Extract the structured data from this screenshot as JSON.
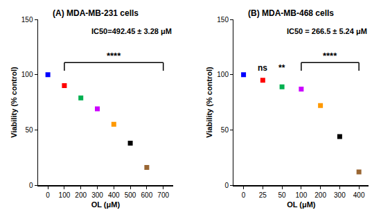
{
  "chart_data": [
    {
      "type": "scatter",
      "title": "(A) MDA-MB-231 cells",
      "x_label": "OL (μM)",
      "y_label": "Viability (% control)",
      "categories": [
        "0",
        "100",
        "200",
        "300",
        "400",
        "500",
        "600",
        "700"
      ],
      "values": [
        100,
        90,
        79,
        69,
        55,
        38,
        16,
        null
      ],
      "colors": [
        "#0000ff",
        "#ff0000",
        "#00b050",
        "#cc00ff",
        "#ff9900",
        "#000000",
        "#996633",
        "#000000"
      ],
      "marker": "square",
      "ylim": [
        0,
        150
      ],
      "yticks": [
        0,
        50,
        100,
        150
      ],
      "grid": false,
      "annotations": [
        {
          "text": "IC50=492.45 ± 3.28 μM"
        },
        {
          "text": "****",
          "from": "100",
          "to": "700"
        }
      ]
    },
    {
      "type": "scatter",
      "title": "(B) MDA-MB-468 cells",
      "x_label": "OL (μM)",
      "y_label": "Viability (% control)",
      "categories": [
        "0",
        "25",
        "50",
        "100",
        "200",
        "300",
        "400"
      ],
      "values": [
        100,
        95,
        89,
        87,
        72,
        44,
        12
      ],
      "colors": [
        "#0000ff",
        "#ff0000",
        "#00b050",
        "#cc00ff",
        "#ff9900",
        "#000000",
        "#996633"
      ],
      "marker": "square",
      "ylim": [
        0,
        150
      ],
      "yticks": [
        0,
        50,
        100,
        150
      ],
      "grid": false,
      "annotations": [
        {
          "text": "IC50 = 266.5 ± 5.24 μM"
        },
        {
          "text": "ns",
          "at": "25"
        },
        {
          "text": "**",
          "at": "50"
        },
        {
          "text": "****",
          "from": "100",
          "to": "400"
        }
      ]
    }
  ]
}
